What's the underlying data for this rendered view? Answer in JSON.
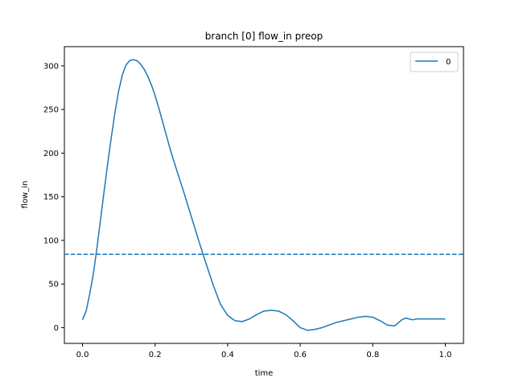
{
  "chart_data": {
    "type": "line",
    "title": "branch [0] flow_in preop",
    "xlabel": "time",
    "ylabel": "flow_in",
    "xlim": [
      -0.05,
      1.05
    ],
    "ylim": [
      -18,
      322
    ],
    "xticks": [
      0.0,
      0.2,
      0.4,
      0.6,
      0.8,
      1.0
    ],
    "xtick_labels": [
      "0.0",
      "0.2",
      "0.4",
      "0.6",
      "0.8",
      "1.0"
    ],
    "yticks": [
      0,
      50,
      100,
      150,
      200,
      250,
      300
    ],
    "ytick_labels": [
      "0",
      "50",
      "100",
      "150",
      "200",
      "250",
      "300"
    ],
    "grid": false,
    "legend_position": "top-right",
    "colors": {
      "series": "#1f77b4"
    },
    "series": [
      {
        "name": "0",
        "x": [
          0.0,
          0.01,
          0.02,
          0.03,
          0.04,
          0.05,
          0.06,
          0.07,
          0.08,
          0.09,
          0.1,
          0.11,
          0.12,
          0.13,
          0.14,
          0.15,
          0.16,
          0.17,
          0.18,
          0.19,
          0.2,
          0.21,
          0.22,
          0.23,
          0.24,
          0.25,
          0.26,
          0.28,
          0.3,
          0.32,
          0.34,
          0.36,
          0.38,
          0.4,
          0.42,
          0.44,
          0.46,
          0.48,
          0.5,
          0.52,
          0.54,
          0.56,
          0.58,
          0.6,
          0.62,
          0.64,
          0.66,
          0.68,
          0.7,
          0.72,
          0.74,
          0.76,
          0.78,
          0.8,
          0.82,
          0.84,
          0.86,
          0.88,
          0.89,
          0.9,
          0.91,
          0.92,
          0.93,
          0.94,
          0.95,
          0.96,
          0.97,
          0.98,
          0.99,
          1.0
        ],
        "values": [
          9,
          19,
          39,
          62,
          92,
          125,
          158,
          190,
          220,
          248,
          272,
          290,
          301,
          306,
          307,
          306,
          302,
          296,
          288,
          278,
          266,
          252,
          237,
          222,
          207,
          193,
          180,
          154,
          127,
          100,
          74,
          49,
          27,
          14,
          8,
          7,
          10,
          15,
          19,
          20,
          19,
          15,
          8,
          0,
          -3,
          -2,
          0,
          3,
          6,
          8,
          10,
          12,
          13,
          12,
          8,
          3,
          2,
          9,
          11,
          10,
          9,
          10,
          10,
          10,
          10,
          10,
          10,
          10,
          10,
          10
        ]
      }
    ],
    "reference_lines": [
      {
        "orientation": "horizontal",
        "y": 84,
        "style": "dashed"
      }
    ]
  }
}
